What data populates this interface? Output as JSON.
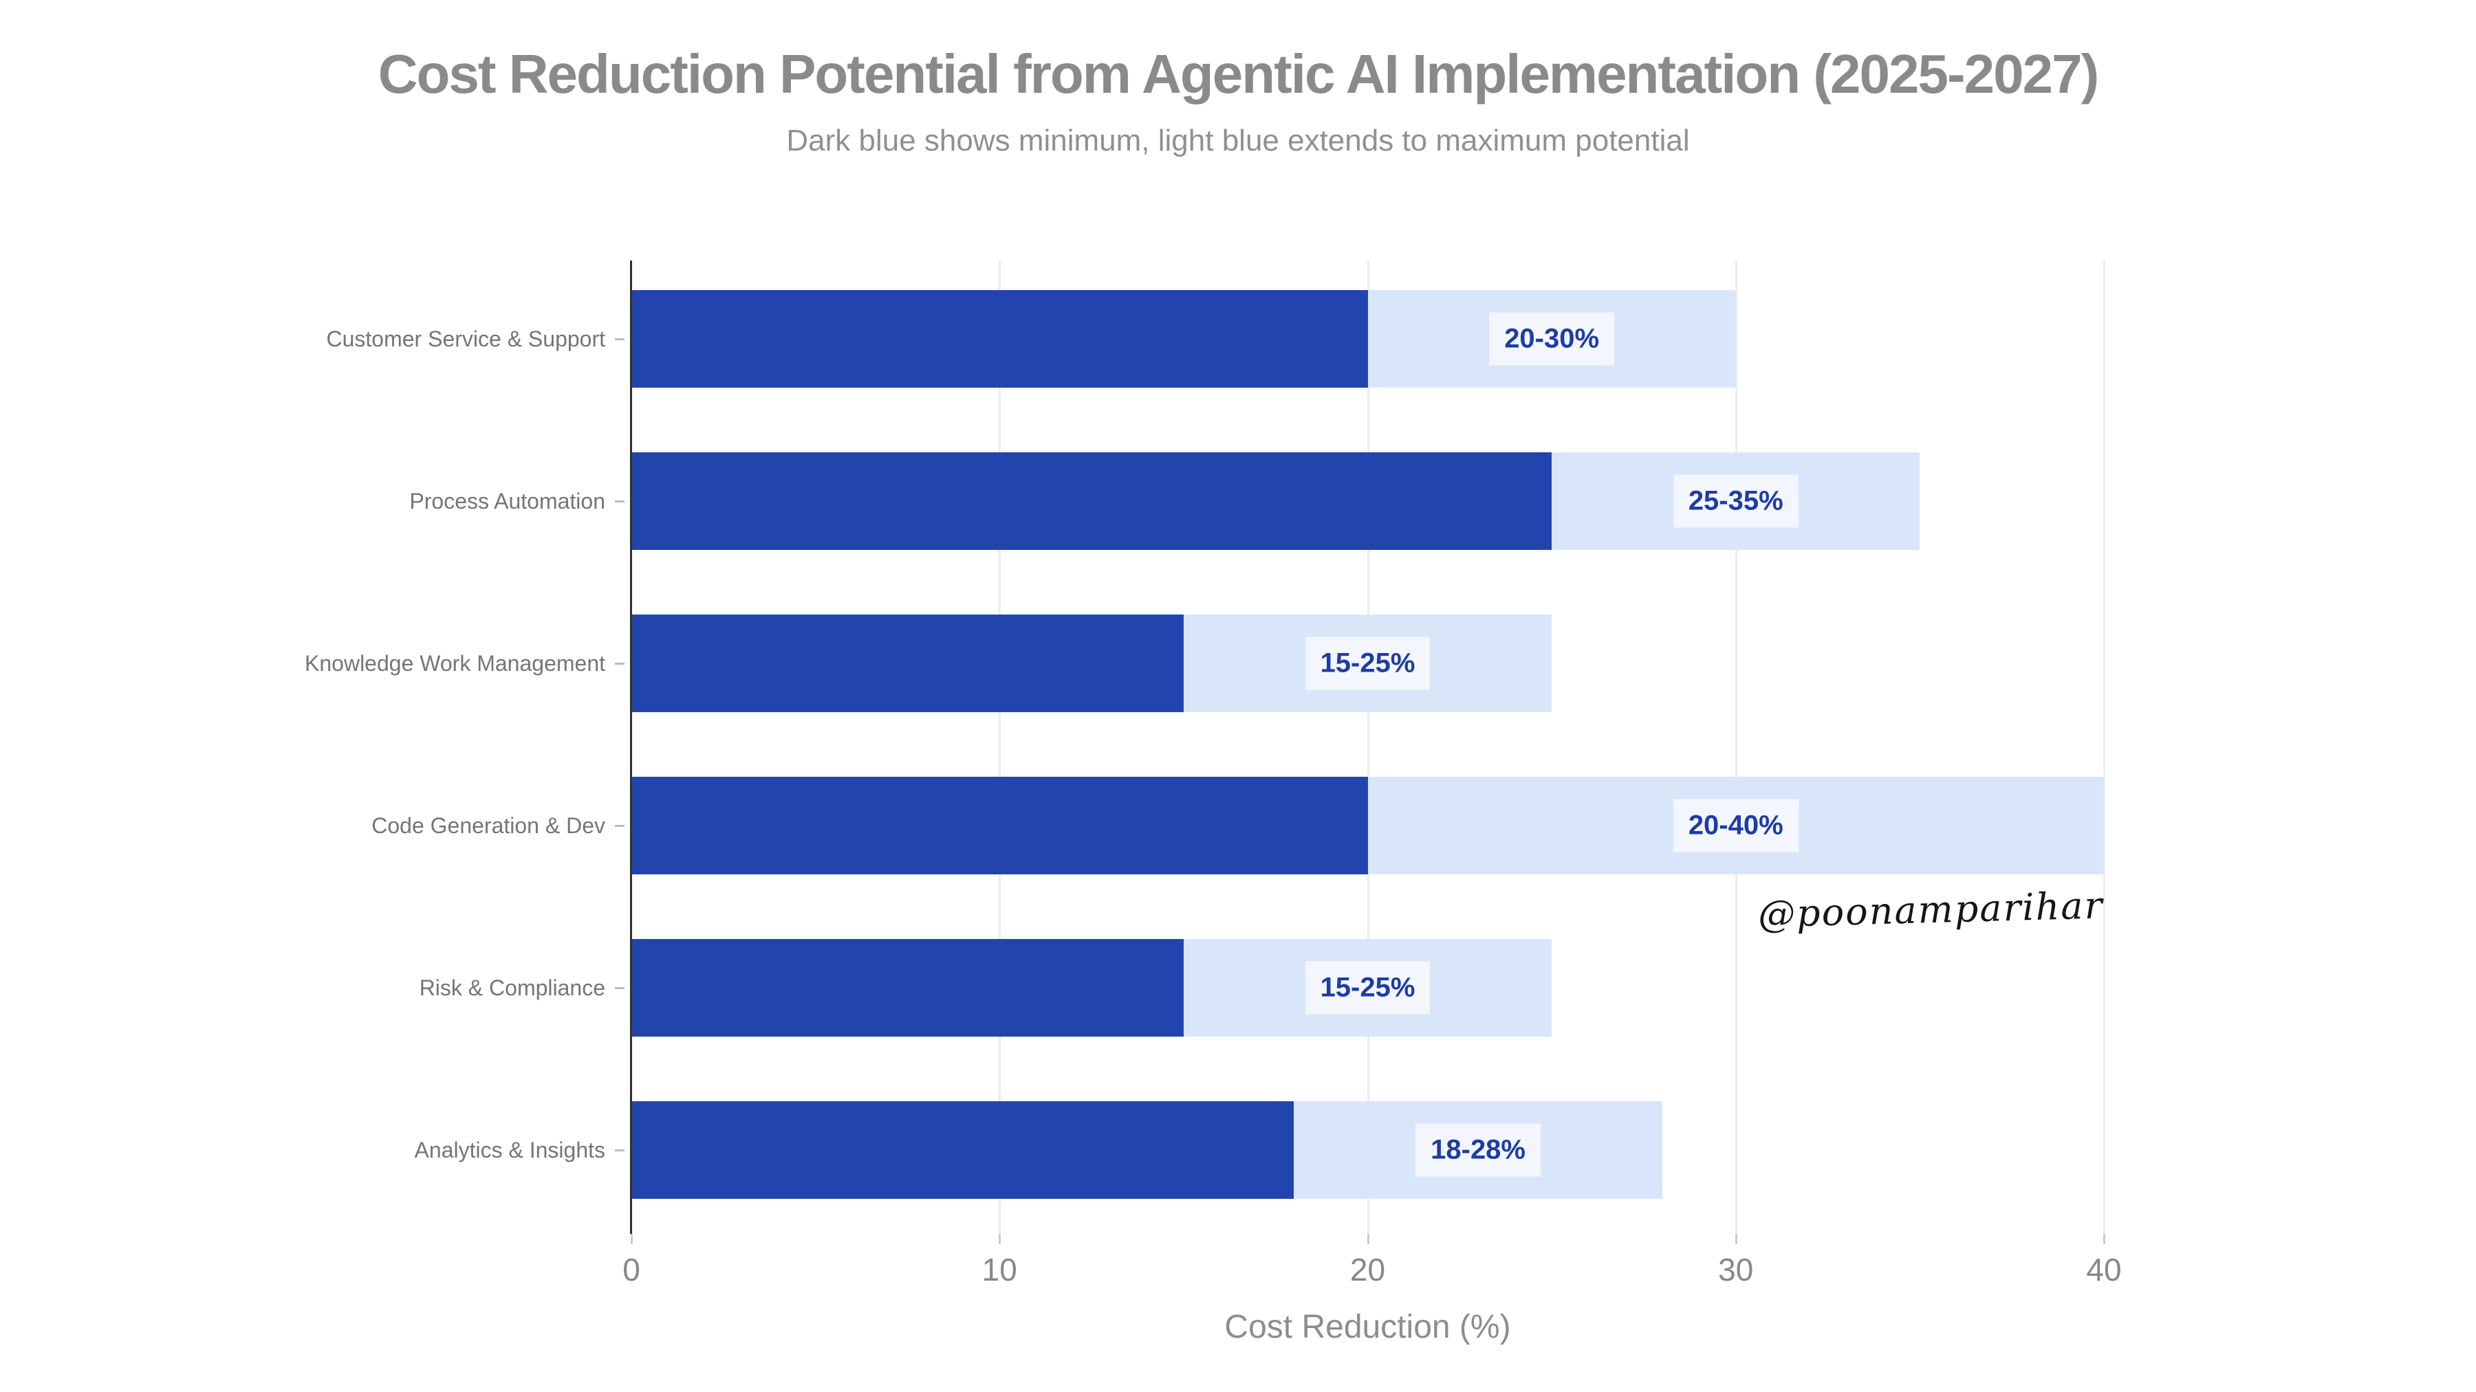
{
  "page": {
    "background": "#ffffff"
  },
  "watermark": {
    "text": "@poonamparihar"
  },
  "chart_data": {
    "type": "bar",
    "orientation": "horizontal",
    "title": "Cost Reduction Potential from Agentic AI Implementation (2025-2027)",
    "subtitle": "Dark blue shows minimum, light blue extends to maximum potential",
    "xlabel": "Cost Reduction (%)",
    "ylabel": "",
    "xlim": [
      0,
      40
    ],
    "xticks": [
      0,
      10,
      20,
      30,
      40
    ],
    "grid": true,
    "legend": "none",
    "categories": [
      "Customer Service & Support",
      "Process Automation",
      "Knowledge Work Management",
      "Code Generation & Dev",
      "Risk & Compliance",
      "Analytics & Insights"
    ],
    "series": [
      {
        "name": "Minimum potential",
        "values": [
          20,
          25,
          15,
          20,
          15,
          18
        ]
      },
      {
        "name": "Maximum potential",
        "values": [
          30,
          35,
          25,
          40,
          25,
          28
        ]
      }
    ],
    "bar_labels": [
      "20-30%",
      "25-35%",
      "15-25%",
      "20-40%",
      "15-25%",
      "18-28%"
    ],
    "colors": {
      "min_bar": "#2145ad",
      "max_bar": "#d9e6fa",
      "label_text": "#1e3ca6",
      "label_box": "#f3f7fd",
      "gridline": "#ececec",
      "axis_line": "#2f2f2f",
      "title_text": "#8a8a8a"
    }
  }
}
